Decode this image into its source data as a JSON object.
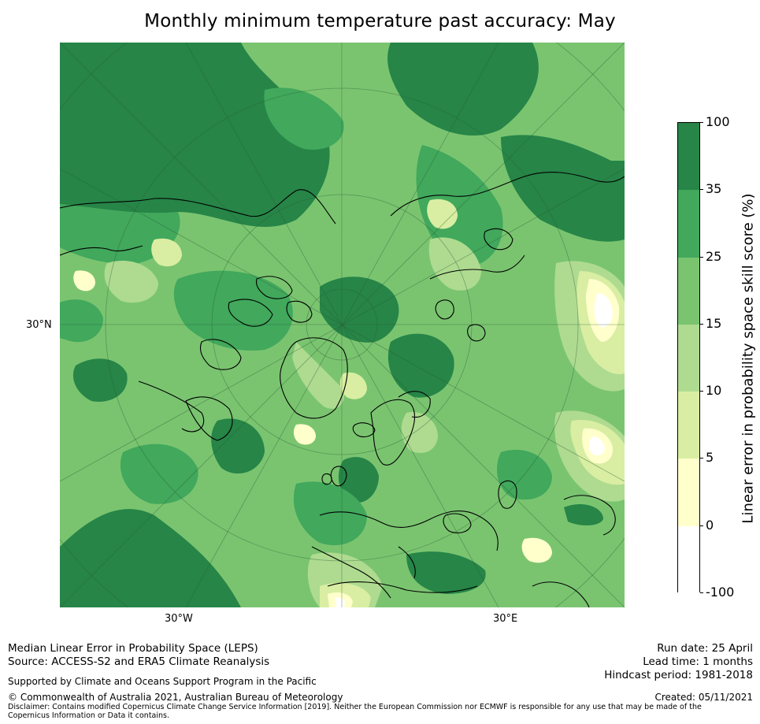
{
  "title": "Monthly minimum temperature past accuracy: May",
  "map": {
    "axis_labels": {
      "lat": "30°N",
      "lon_west": "30°W",
      "lon_east": "30°E"
    },
    "colors": {
      "ocean_bg": "#7ac470",
      "deep": "#268547",
      "mid": "#41a85c",
      "light": "#aedb90",
      "pale": "#d9eea2",
      "cream": "#ffffcc",
      "white": "#ffffff"
    }
  },
  "colorbar": {
    "title": "Linear error in probability space skill score (%)",
    "ticks": [
      "100",
      "35",
      "25",
      "15",
      "10",
      "5",
      "0",
      "-100"
    ],
    "colors": [
      "#268547",
      "#41a85c",
      "#7ac470",
      "#aedb90",
      "#d9eea2",
      "#ffffcc",
      "#ffffff"
    ]
  },
  "footer": {
    "method": "Median Linear Error in Probability Space (LEPS)",
    "source": "Source: ACCESS-S2 and ERA5 Climate Reanalysis",
    "support": "Supported by Climate and Oceans Support Program in the Pacific",
    "copyright": "© Commonwealth of Australia 2021, Australian Bureau of Meteorology",
    "disclaimer": "Disclaimer: Contains modified Copernicus Climate Change Service Information [2019]. Neither the European Commission nor ECMWF is responsible for any use that may be made of the Copernicus Information or Data it contains.",
    "run_date": "Run date: 25 April",
    "lead_time": "Lead time: 1 months",
    "hindcast": "Hindcast period: 1981-2018",
    "created": "Created: 05/11/2021"
  }
}
